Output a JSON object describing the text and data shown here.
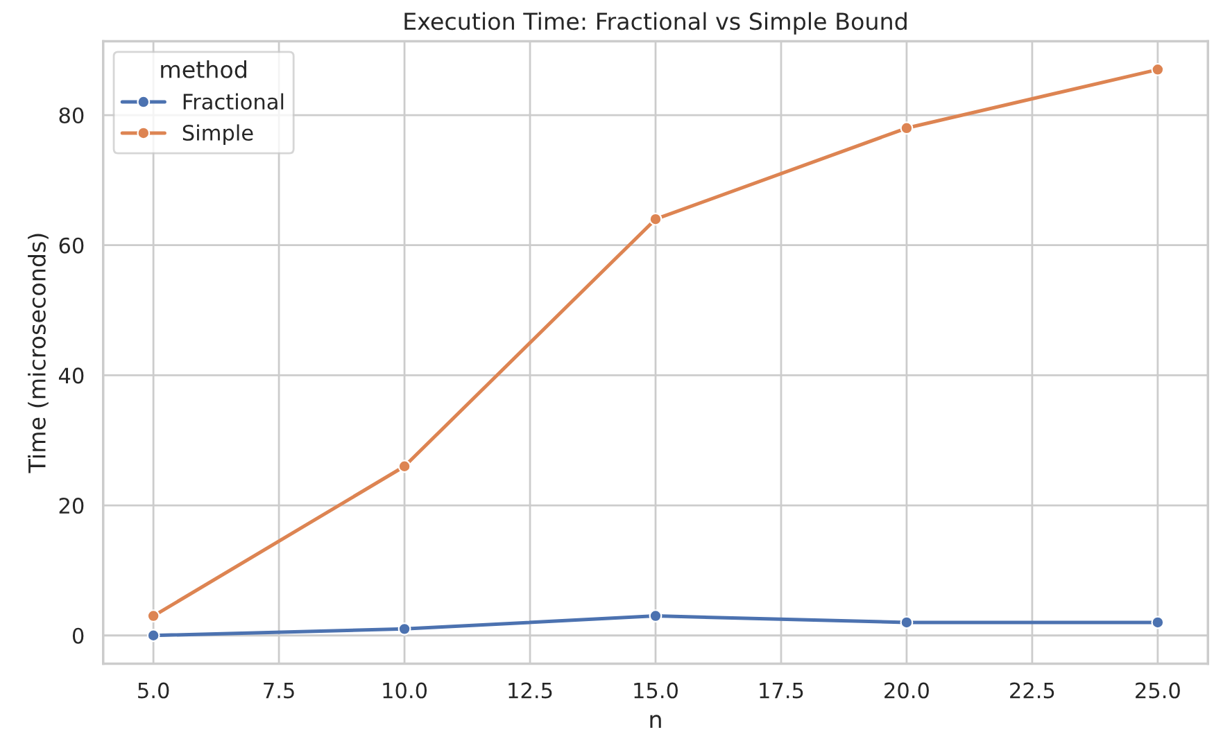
{
  "chart_data": {
    "type": "line",
    "title": "Execution Time: Fractional vs Simple Bound",
    "xlabel": "n",
    "ylabel": "Time (microseconds)",
    "legend_title": "method",
    "x": [
      5,
      10,
      15,
      20,
      25
    ],
    "series": [
      {
        "name": "Fractional",
        "color": "#4c72b0",
        "values": [
          0,
          1,
          3,
          2,
          2
        ]
      },
      {
        "name": "Simple",
        "color": "#dd8452",
        "values": [
          3,
          26,
          64,
          78,
          87
        ]
      }
    ],
    "xlim": [
      4.0,
      26.0
    ],
    "ylim": [
      -4.35,
      91.35
    ],
    "xticks": [
      {
        "value": 5,
        "label": "5.0"
      },
      {
        "value": 7.5,
        "label": "7.5"
      },
      {
        "value": 10,
        "label": "10.0"
      },
      {
        "value": 12.5,
        "label": "12.5"
      },
      {
        "value": 15,
        "label": "15.0"
      },
      {
        "value": 17.5,
        "label": "17.5"
      },
      {
        "value": 20,
        "label": "20.0"
      },
      {
        "value": 22.5,
        "label": "22.5"
      },
      {
        "value": 25,
        "label": "25.0"
      }
    ],
    "yticks": [
      0,
      20,
      40,
      60,
      80
    ],
    "grid": true,
    "legend": "top left",
    "marker": "circle",
    "line_style": "solid"
  }
}
